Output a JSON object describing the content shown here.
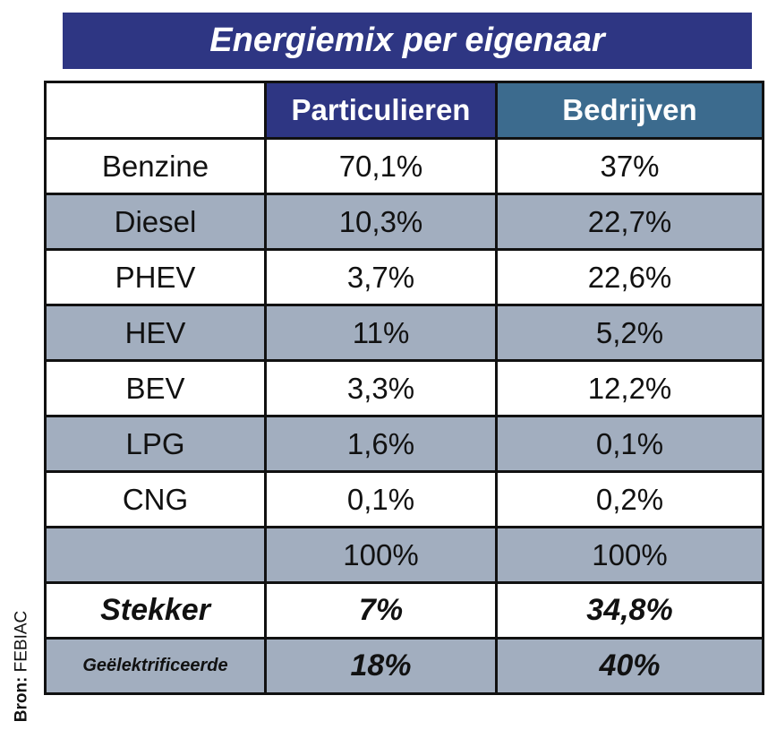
{
  "title": "Energiemix per eigenaar",
  "source": {
    "label": "Bron:",
    "name": "FEBIAC"
  },
  "chart_data": {
    "type": "table",
    "title": "Energiemix per eigenaar",
    "columns": [
      "",
      "Particulieren",
      "Bedrijven"
    ],
    "rows": [
      {
        "label": "Benzine",
        "particulieren": "70,1%",
        "bedrijven": "37%"
      },
      {
        "label": "Diesel",
        "particulieren": "10,3%",
        "bedrijven": "22,7%"
      },
      {
        "label": "PHEV",
        "particulieren": "3,7%",
        "bedrijven": "22,6%"
      },
      {
        "label": "HEV",
        "particulieren": "11%",
        "bedrijven": "5,2%"
      },
      {
        "label": "BEV",
        "particulieren": "3,3%",
        "bedrijven": "12,2%"
      },
      {
        "label": "LPG",
        "particulieren": "1,6%",
        "bedrijven": "0,1%"
      },
      {
        "label": "CNG",
        "particulieren": "0,1%",
        "bedrijven": "0,2%"
      },
      {
        "label": "",
        "particulieren": "100%",
        "bedrijven": "100%"
      },
      {
        "label": "Stekker",
        "particulieren": "7%",
        "bedrijven": "34,8%"
      },
      {
        "label": "Geëlektrificeerde",
        "particulieren": "18%",
        "bedrijven": "40%"
      }
    ]
  },
  "colors": {
    "title_bg": "#2e3683",
    "header_particulieren": "#2e3683",
    "header_bedrijven": "#3c6b8e",
    "row_shade": "#a2aebf",
    "row_plain": "#ffffff"
  }
}
